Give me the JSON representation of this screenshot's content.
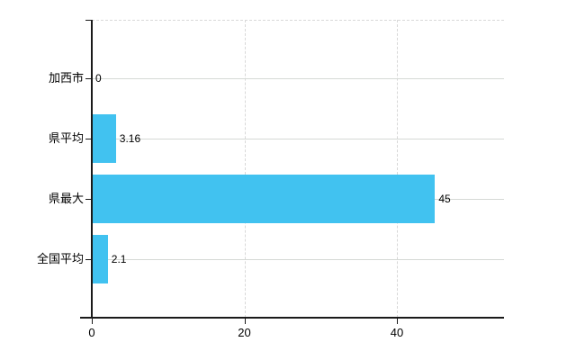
{
  "chart_data": {
    "type": "bar",
    "orientation": "horizontal",
    "title": "",
    "xlabel": "",
    "ylabel": "",
    "categories": [
      "加西市",
      "県平均",
      "県最大",
      "全国平均"
    ],
    "values": [
      0,
      3.16,
      45,
      2.1
    ],
    "value_labels": [
      "0",
      "3.16",
      "45",
      "2.1"
    ],
    "x_ticks": [
      0,
      20,
      40
    ],
    "x_tick_labels": [
      "0",
      "20",
      "40"
    ],
    "xlim": [
      0,
      54
    ],
    "grid": "on",
    "legend": "none",
    "colors": {
      "bar_fill": "#41c2f0",
      "gridline_solid": "#d5d9d5",
      "gridline_dashed": "#d8d8d8",
      "axis": "#1a1a1a",
      "text": "#000000",
      "background": "#ffffff"
    }
  }
}
